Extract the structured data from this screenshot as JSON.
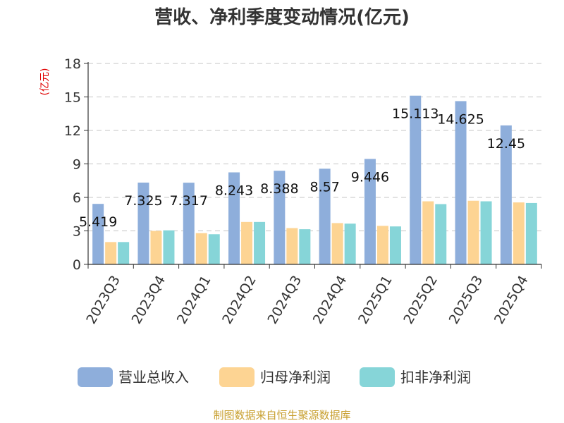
{
  "chart_data": {
    "type": "bar",
    "title": "营收、净利季度变动情况(亿元)",
    "ylabel": "(亿元)",
    "ylim": [
      0,
      18
    ],
    "yticks": [
      0,
      3,
      6,
      9,
      12,
      15,
      18
    ],
    "grid": true,
    "legend_position": "bottom",
    "categories": [
      "2023Q3",
      "2023Q4",
      "2024Q1",
      "2024Q2",
      "2024Q3",
      "2024Q4",
      "2025Q1",
      "2025Q2",
      "2025Q3",
      "2025Q4"
    ],
    "series": [
      {
        "name": "营业总收入",
        "color": "#8eaedb",
        "values": [
          5.419,
          7.325,
          7.317,
          8.243,
          8.388,
          8.57,
          9.446,
          15.113,
          14.625,
          12.45
        ]
      },
      {
        "name": "归母净利润",
        "color": "#fdd493",
        "values": [
          2.0,
          3.0,
          2.8,
          3.8,
          3.25,
          3.7,
          3.45,
          5.65,
          5.7,
          5.55
        ]
      },
      {
        "name": "扣非净利润",
        "color": "#86d5d8",
        "values": [
          2.0,
          3.05,
          2.7,
          3.8,
          3.15,
          3.65,
          3.4,
          5.4,
          5.65,
          5.5
        ]
      }
    ],
    "data_labels": [
      "5.419",
      "7.325",
      "7.317",
      "8.243",
      "8.388",
      "8.57",
      "9.446",
      "15.113",
      "14.625",
      "12.45"
    ]
  },
  "source": "制图数据来自恒生聚源数据库"
}
